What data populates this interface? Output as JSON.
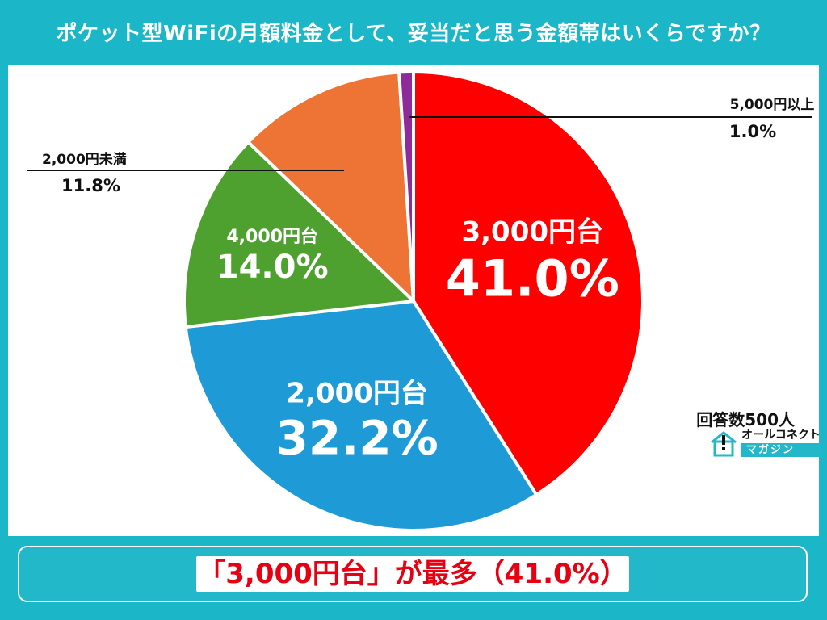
{
  "title": "ポケット型WiFiの月額料金として、妥当だと思う金額帯はいくらですか？",
  "respondents": "回答数500人",
  "logo": {
    "main": "オールコネクト",
    "sub": "マガジン",
    "icon": "house-exclamation-icon"
  },
  "summary": "「3,000円台」が最多（41.0%）",
  "colors": {
    "frame": "#1bb6c8",
    "summary_text": "#e60012"
  },
  "chart_data": {
    "type": "pie",
    "categories": [
      "3,000円台",
      "2,000円台",
      "4,000円台",
      "2,000円未満",
      "5,000円以上"
    ],
    "values": [
      41.0,
      32.2,
      14.0,
      11.8,
      1.0
    ],
    "value_labels": [
      "41.0%",
      "32.2%",
      "14.0%",
      "11.8%",
      "1.0%"
    ],
    "colors": [
      "#ff0000",
      "#1e9bd7",
      "#4ea12f",
      "#ed7434",
      "#8e2a9a"
    ],
    "start": "12 o'clock",
    "direction": "clockwise",
    "unit": "%",
    "legend": "none"
  }
}
